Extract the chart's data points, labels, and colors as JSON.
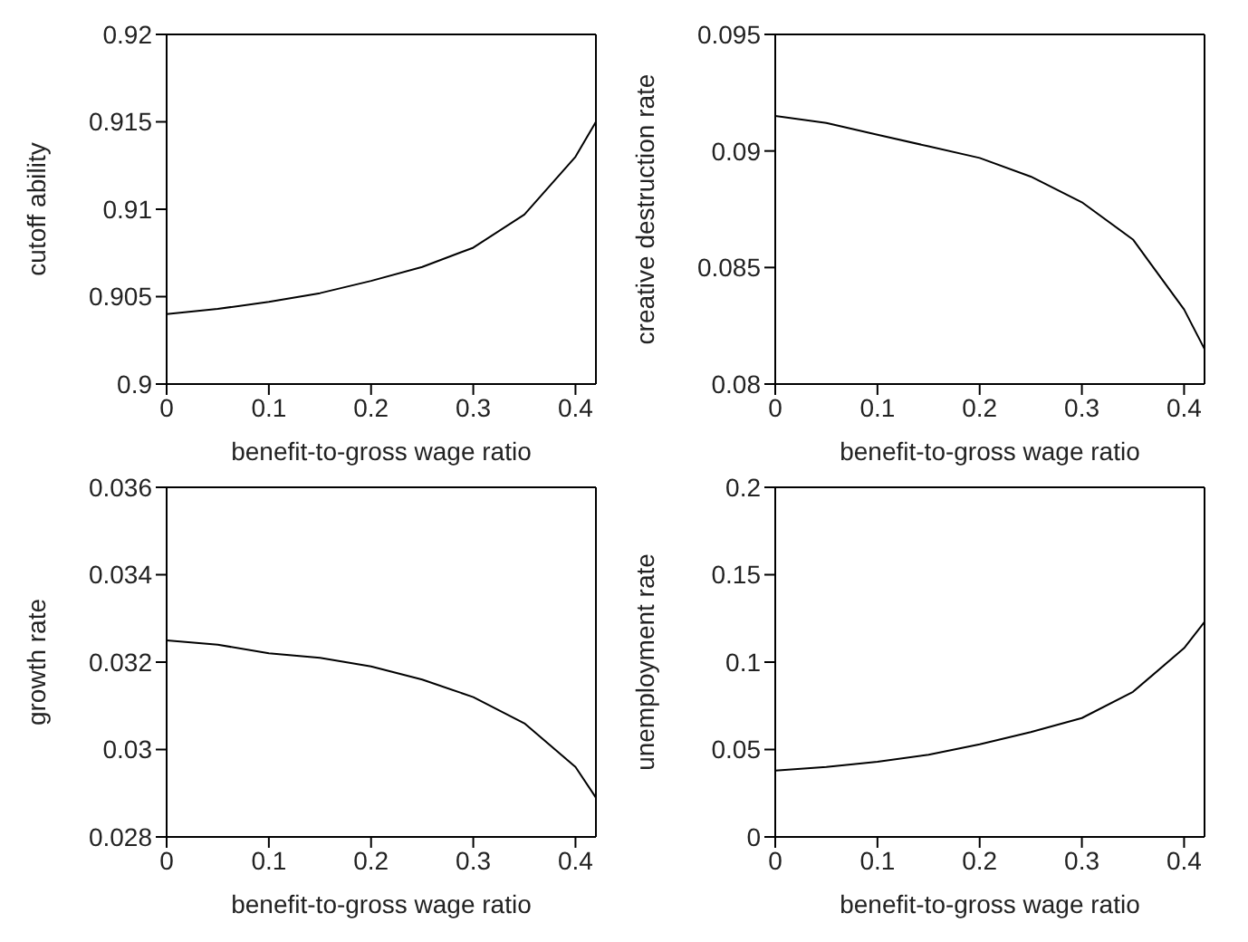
{
  "chart_data": [
    {
      "type": "line",
      "xlabel": "benefit-to-gross wage ratio",
      "ylabel": "cutoff ability",
      "x": [
        0,
        0.05,
        0.1,
        0.15,
        0.2,
        0.25,
        0.3,
        0.35,
        0.4,
        0.42
      ],
      "series": [
        {
          "color": "#000000",
          "values": [
            0.904,
            0.9043,
            0.9047,
            0.9052,
            0.9059,
            0.9067,
            0.9078,
            0.9097,
            0.913,
            0.915
          ]
        }
      ],
      "xlim": [
        0,
        0.42
      ],
      "xticks": [
        0,
        0.1,
        0.2,
        0.3,
        0.4
      ],
      "ylim": [
        0.9,
        0.92
      ],
      "yticks": [
        0.9,
        0.905,
        0.91,
        0.915,
        0.92
      ]
    },
    {
      "type": "line",
      "xlabel": "benefit-to-gross wage ratio",
      "ylabel": "creative destruction rate",
      "x": [
        0,
        0.05,
        0.1,
        0.15,
        0.2,
        0.25,
        0.3,
        0.35,
        0.4,
        0.42
      ],
      "series": [
        {
          "color": "#000000",
          "values": [
            0.0915,
            0.0912,
            0.0907,
            0.0902,
            0.0897,
            0.0889,
            0.0878,
            0.0862,
            0.0832,
            0.0815
          ]
        }
      ],
      "xlim": [
        0,
        0.42
      ],
      "xticks": [
        0,
        0.1,
        0.2,
        0.3,
        0.4
      ],
      "ylim": [
        0.08,
        0.095
      ],
      "yticks": [
        0.08,
        0.085,
        0.09,
        0.095
      ]
    },
    {
      "type": "line",
      "xlabel": "benefit-to-gross wage ratio",
      "ylabel": "growth rate",
      "x": [
        0,
        0.05,
        0.1,
        0.15,
        0.2,
        0.25,
        0.3,
        0.35,
        0.4,
        0.42
      ],
      "series": [
        {
          "color": "#000000",
          "values": [
            0.0325,
            0.0324,
            0.0322,
            0.0321,
            0.0319,
            0.0316,
            0.0312,
            0.0306,
            0.0296,
            0.0289
          ]
        }
      ],
      "xlim": [
        0,
        0.42
      ],
      "xticks": [
        0,
        0.1,
        0.2,
        0.3,
        0.4
      ],
      "ylim": [
        0.028,
        0.036
      ],
      "yticks": [
        0.028,
        0.03,
        0.032,
        0.034,
        0.036
      ]
    },
    {
      "type": "line",
      "xlabel": "benefit-to-gross wage ratio",
      "ylabel": "unemployment rate",
      "x": [
        0,
        0.05,
        0.1,
        0.15,
        0.2,
        0.25,
        0.3,
        0.35,
        0.4,
        0.42
      ],
      "series": [
        {
          "color": "#000000",
          "values": [
            0.038,
            0.04,
            0.043,
            0.047,
            0.053,
            0.06,
            0.068,
            0.083,
            0.108,
            0.123
          ]
        }
      ],
      "xlim": [
        0,
        0.42
      ],
      "xticks": [
        0,
        0.1,
        0.2,
        0.3,
        0.4
      ],
      "ylim": [
        0,
        0.2
      ],
      "yticks": [
        0,
        0.05,
        0.1,
        0.15,
        0.2
      ]
    }
  ]
}
